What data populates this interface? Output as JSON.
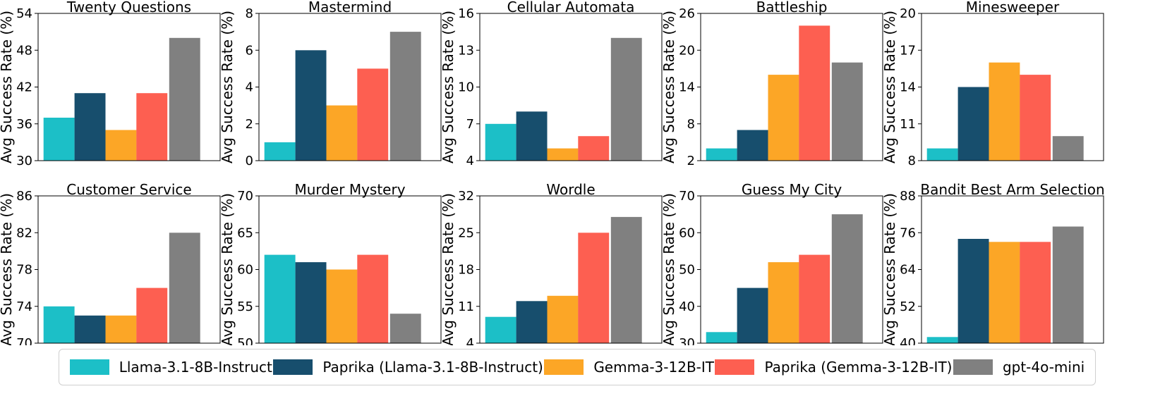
{
  "colors": [
    "#1cbfc7",
    "#174e6d",
    "#fca626",
    "#fd5f51",
    "#808080"
  ],
  "legend": [
    {
      "label": "Llama-3.1-8B-Instruct",
      "color": "#1cbfc7"
    },
    {
      "label": "Paprika (Llama-3.1-8B-Instruct)",
      "color": "#174e6d"
    },
    {
      "label": "Gemma-3-12B-IT",
      "color": "#fca626"
    },
    {
      "label": "Paprika (Gemma-3-12B-IT)",
      "color": "#fd5f51"
    },
    {
      "label": "gpt-4o-mini",
      "color": "#808080"
    }
  ],
  "chart_data": [
    {
      "type": "bar",
      "title": "Twenty Questions",
      "ylabel": "Avg Success Rate (%)",
      "ylim": [
        30,
        54
      ],
      "yticks": [
        30,
        36,
        42,
        48,
        54
      ],
      "values": [
        37,
        41,
        35,
        41,
        50
      ]
    },
    {
      "type": "bar",
      "title": "Mastermind",
      "ylabel": "Avg Success Rate (%)",
      "ylim": [
        0,
        8
      ],
      "yticks": [
        0,
        2,
        4,
        6,
        8
      ],
      "values": [
        1,
        6,
        3,
        5,
        7
      ]
    },
    {
      "type": "bar",
      "title": "Cellular Automata",
      "ylabel": "Avg Success Rate (%)",
      "ylim": [
        4,
        16
      ],
      "yticks": [
        4,
        7,
        10,
        13,
        16
      ],
      "values": [
        7,
        8,
        5,
        6,
        14
      ]
    },
    {
      "type": "bar",
      "title": "Battleship",
      "ylabel": "Avg Success Rate (%)",
      "ylim": [
        2,
        26
      ],
      "yticks": [
        2,
        8,
        14,
        20,
        26
      ],
      "values": [
        4,
        7,
        16,
        24,
        18
      ]
    },
    {
      "type": "bar",
      "title": "Minesweeper",
      "ylabel": "Avg Success Rate (%)",
      "ylim": [
        8,
        20
      ],
      "yticks": [
        8,
        11,
        14,
        17,
        20
      ],
      "values": [
        9,
        14,
        16,
        15,
        10
      ]
    },
    {
      "type": "bar",
      "title": "Customer Service",
      "ylabel": "Avg Success Rate (%)",
      "ylim": [
        70,
        86
      ],
      "yticks": [
        70,
        74,
        78,
        82,
        86
      ],
      "values": [
        74,
        73,
        73,
        76,
        82
      ]
    },
    {
      "type": "bar",
      "title": "Murder Mystery",
      "ylabel": "Avg Success Rate (%)",
      "ylim": [
        50,
        70
      ],
      "yticks": [
        50,
        55,
        60,
        65,
        70
      ],
      "values": [
        62,
        61,
        60,
        62,
        54
      ]
    },
    {
      "type": "bar",
      "title": "Wordle",
      "ylabel": "Avg Success Rate (%)",
      "ylim": [
        4,
        32
      ],
      "yticks": [
        4,
        11,
        18,
        25,
        32
      ],
      "values": [
        9,
        12,
        13,
        25,
        28
      ]
    },
    {
      "type": "bar",
      "title": "Guess My City",
      "ylabel": "Avg Success Rate (%)",
      "ylim": [
        30,
        70
      ],
      "yticks": [
        30,
        40,
        50,
        60,
        70
      ],
      "values": [
        33,
        45,
        52,
        54,
        65
      ]
    },
    {
      "type": "bar",
      "title": "Bandit Best Arm Selection",
      "ylabel": "Avg Success Rate (%)",
      "ylim": [
        40,
        88
      ],
      "yticks": [
        40,
        52,
        64,
        76,
        88
      ],
      "values": [
        42,
        74,
        73,
        73,
        78
      ]
    }
  ]
}
